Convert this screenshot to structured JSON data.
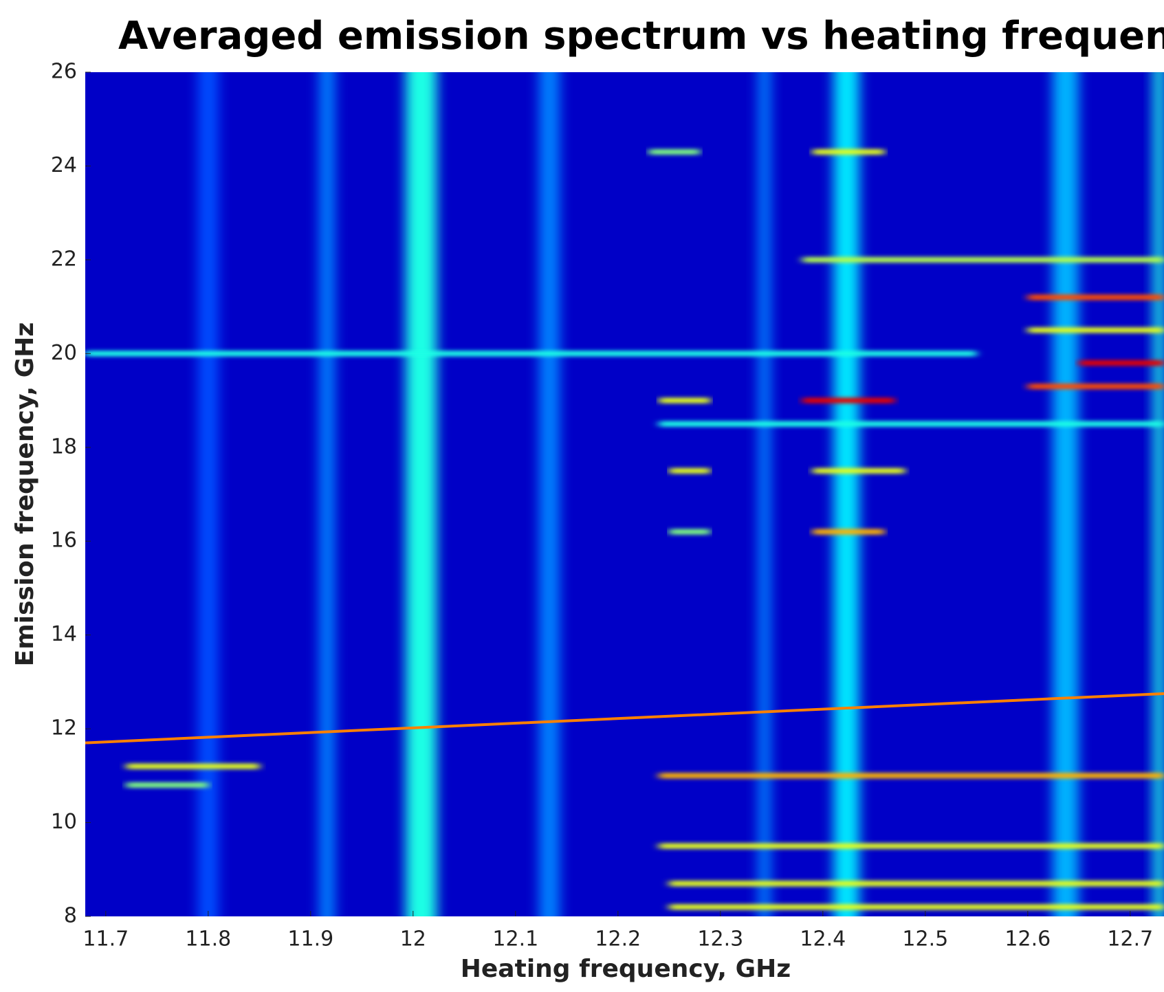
{
  "chart_data": {
    "type": "heatmap",
    "title": "Averaged emission spectrum vs heating frequency",
    "x_label": "Heating frequency, GHz",
    "y_label": "Emission frequency, GHz",
    "colormap": "jet",
    "background_intensity": 0.07,
    "xlim": [
      11.68,
      12.733
    ],
    "ylim": [
      8,
      26
    ],
    "xticks": [
      11.7,
      11.8,
      11.9,
      12,
      12.1,
      12.2,
      12.3,
      12.4,
      12.5,
      12.6,
      12.7
    ],
    "yticks": [
      8,
      10,
      12,
      14,
      16,
      18,
      20,
      22,
      24,
      26
    ],
    "columns": [
      {
        "x": 11.8,
        "width": 0.02,
        "intensity": 0.2
      },
      {
        "x": 11.916,
        "width": 0.015,
        "intensity": 0.25
      },
      {
        "x": 12.008,
        "width": 0.03,
        "intensity": 0.4
      },
      {
        "x": 12.133,
        "width": 0.02,
        "intensity": 0.25
      },
      {
        "x": 12.343,
        "width": 0.012,
        "intensity": 0.25
      },
      {
        "x": 12.423,
        "width": 0.025,
        "intensity": 0.35
      },
      {
        "x": 12.637,
        "width": 0.025,
        "intensity": 0.3
      },
      {
        "x": 12.728,
        "width": 0.01,
        "intensity": 0.4
      }
    ],
    "patches": [
      {
        "y": 20,
        "x0": 11.68,
        "x1": 12.55,
        "intensity": 0.4
      },
      {
        "y": 19.0,
        "x0": 12.24,
        "x1": 12.29,
        "intensity": 0.6
      },
      {
        "y": 19.0,
        "x0": 12.38,
        "x1": 12.47,
        "intensity": 0.9
      },
      {
        "y": 11.0,
        "x0": 12.24,
        "x1": 12.733,
        "intensity": 0.7
      },
      {
        "y": 22.0,
        "x0": 12.38,
        "x1": 12.733,
        "intensity": 0.55
      },
      {
        "y": 19.3,
        "x0": 12.6,
        "x1": 12.733,
        "intensity": 0.8
      },
      {
        "y": 24.3,
        "x0": 12.23,
        "x1": 12.28,
        "intensity": 0.5
      },
      {
        "y": 24.3,
        "x0": 12.39,
        "x1": 12.46,
        "intensity": 0.6
      },
      {
        "y": 17.5,
        "x0": 12.25,
        "x1": 12.29,
        "intensity": 0.6
      },
      {
        "y": 17.5,
        "x0": 12.39,
        "x1": 12.48,
        "intensity": 0.6
      },
      {
        "y": 16.2,
        "x0": 12.25,
        "x1": 12.29,
        "intensity": 0.5
      },
      {
        "y": 16.2,
        "x0": 12.39,
        "x1": 12.46,
        "intensity": 0.7
      },
      {
        "y": 9.5,
        "x0": 12.24,
        "x1": 12.733,
        "intensity": 0.6
      },
      {
        "y": 8.7,
        "x0": 12.25,
        "x1": 12.733,
        "intensity": 0.6
      },
      {
        "y": 8.2,
        "x0": 12.25,
        "x1": 12.733,
        "intensity": 0.6
      },
      {
        "y": 11.2,
        "x0": 11.72,
        "x1": 11.85,
        "intensity": 0.6
      },
      {
        "y": 10.8,
        "x0": 11.72,
        "x1": 11.8,
        "intensity": 0.5
      },
      {
        "y": 21.2,
        "x0": 12.6,
        "x1": 12.733,
        "intensity": 0.8
      },
      {
        "y": 19.8,
        "x0": 12.65,
        "x1": 12.733,
        "intensity": 0.9
      },
      {
        "y": 20.5,
        "x0": 12.6,
        "x1": 12.733,
        "intensity": 0.6
      },
      {
        "y": 18.5,
        "x0": 12.24,
        "x1": 12.733,
        "intensity": 0.4
      }
    ],
    "series": [
      {
        "x": [
          11.68,
          12.733
        ],
        "values": [
          11.7,
          12.75
        ],
        "intensity": 0.75
      }
    ]
  }
}
